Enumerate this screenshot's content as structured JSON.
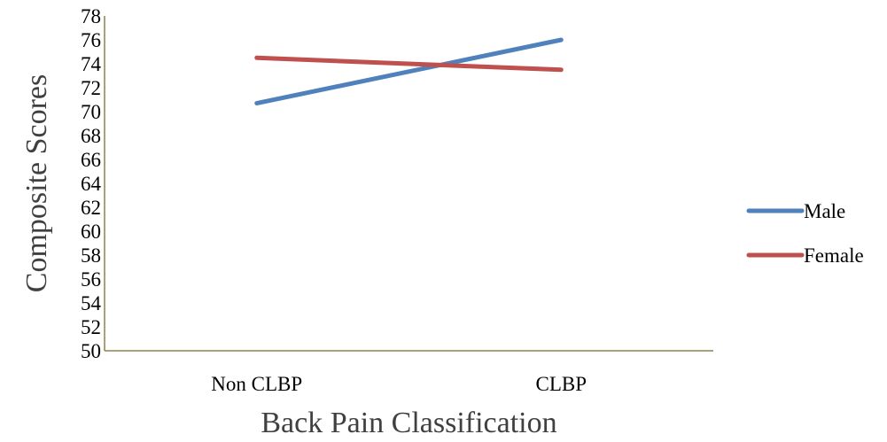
{
  "chart_data": {
    "type": "line",
    "title": "",
    "xlabel": "Back Pain Classification",
    "ylabel": "Composite Scores",
    "categories": [
      "Non CLBP",
      "CLBP"
    ],
    "ylim": [
      50,
      78
    ],
    "yticks": [
      50,
      52,
      54,
      56,
      58,
      60,
      62,
      64,
      66,
      68,
      70,
      72,
      74,
      76,
      78
    ],
    "grid": false,
    "legend_position": "right",
    "series": [
      {
        "name": "Male",
        "values": [
          70.7,
          76.0
        ],
        "color": "#4f81bd"
      },
      {
        "name": "Female",
        "values": [
          74.5,
          73.5
        ],
        "color": "#c0504d"
      }
    ]
  }
}
